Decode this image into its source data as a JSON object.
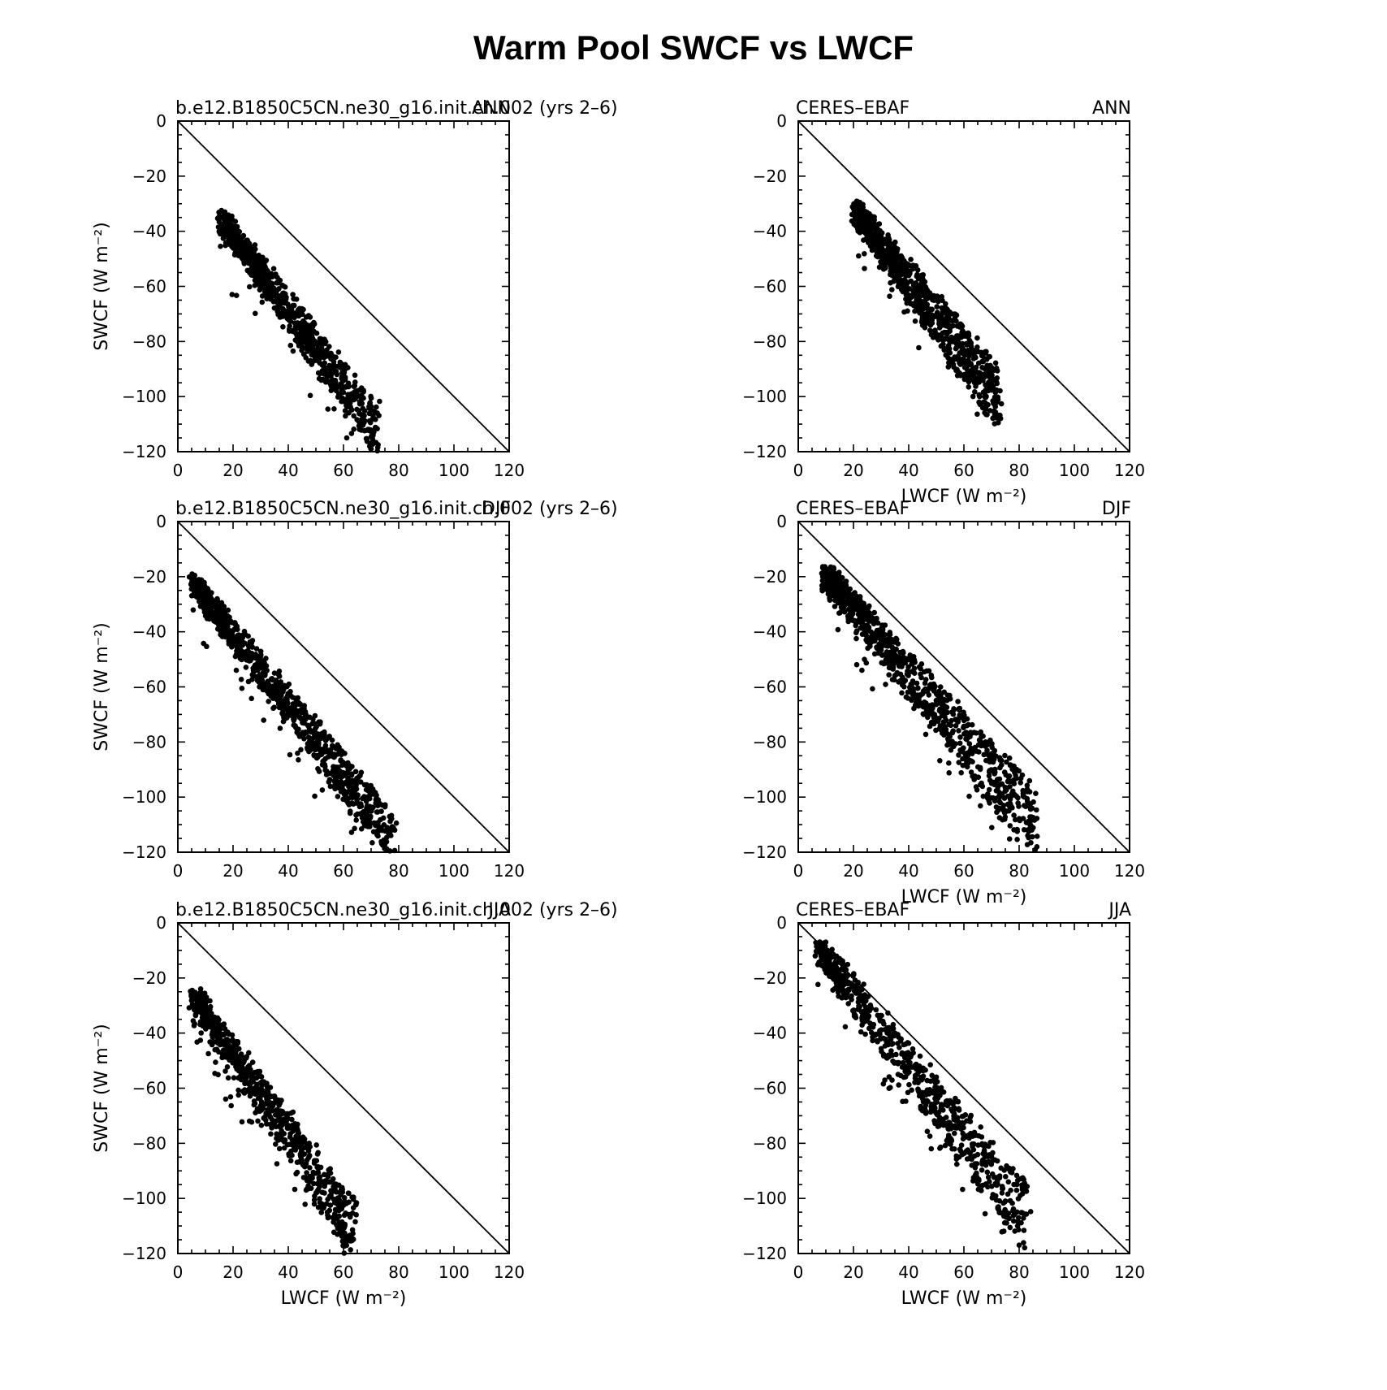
{
  "figure": {
    "title": "Warm Pool SWCF vs LWCF"
  },
  "chart_data": [
    {
      "type": "scatter",
      "left_title": "b.e12.B1850C5CN.ne30_g16.init.ch.002 (yrs 2–6)",
      "right_title": "ANN",
      "ylabel": "SWCF (W m⁻²)",
      "xlabel": "",
      "xlim": [
        0,
        120
      ],
      "ylim": [
        -120,
        0
      ],
      "xticks": [
        "0",
        "20",
        "40",
        "60",
        "80",
        "100",
        "120"
      ],
      "yticks": [
        "0",
        "−20",
        "−40",
        "−60",
        "−80",
        "−100",
        "−120"
      ],
      "reference_line": "one-to-one",
      "cloud": {
        "n": 900,
        "x": [
          16,
          72
        ],
        "y0": -36,
        "y1": -112,
        "mid_x": [
          28,
          50
        ],
        "mid_y": [
          -45,
          -80
        ],
        "spread": 6,
        "outliers": 40
      }
    },
    {
      "type": "scatter",
      "left_title": "CERES–EBAF",
      "right_title": "ANN",
      "ylabel": "",
      "xlabel": "LWCF (W m⁻²)",
      "xlim": [
        0,
        120
      ],
      "ylim": [
        -120,
        0
      ],
      "xticks": [
        "0",
        "20",
        "40",
        "60",
        "80",
        "100",
        "120"
      ],
      "yticks": [
        "0",
        "−20",
        "−40",
        "−60",
        "−80",
        "−100",
        "−120"
      ],
      "reference_line": "one-to-one",
      "cloud": {
        "n": 900,
        "x": [
          21,
          72
        ],
        "y0": -33,
        "y1": -100,
        "mid_x": [
          30,
          55
        ],
        "mid_y": [
          -40,
          -70
        ],
        "spread": 7,
        "outliers": 40
      }
    },
    {
      "type": "scatter",
      "left_title": "b.e12.B1850C5CN.ne30_g16.init.ch.002 (yrs 2–6)",
      "right_title": "DJF",
      "ylabel": "SWCF (W m⁻²)",
      "xlabel": "",
      "xlim": [
        0,
        120
      ],
      "ylim": [
        -120,
        0
      ],
      "xticks": [
        "0",
        "20",
        "40",
        "60",
        "80",
        "100",
        "120"
      ],
      "yticks": [
        "0",
        "−20",
        "−40",
        "−60",
        "−80",
        "−100",
        "−120"
      ],
      "reference_line": "one-to-one",
      "cloud": {
        "n": 900,
        "x": [
          6,
          78
        ],
        "y0": -23,
        "y1": -116,
        "mid_x": [
          20,
          55
        ],
        "mid_y": [
          -40,
          -82
        ],
        "spread": 6,
        "outliers": 60
      }
    },
    {
      "type": "scatter",
      "left_title": "CERES–EBAF",
      "right_title": "DJF",
      "ylabel": "",
      "xlabel": "LWCF (W m⁻²)",
      "xlim": [
        0,
        120
      ],
      "ylim": [
        -120,
        0
      ],
      "xticks": [
        "0",
        "20",
        "40",
        "60",
        "80",
        "100",
        "120"
      ],
      "yticks": [
        "0",
        "−20",
        "−40",
        "−60",
        "−80",
        "−100",
        "−120"
      ],
      "reference_line": "one-to-one",
      "cloud": {
        "n": 900,
        "x": [
          10,
          86
        ],
        "y0": -20,
        "y1": -110,
        "mid_x": [
          25,
          65
        ],
        "mid_y": [
          -35,
          -80
        ],
        "spread": 8,
        "outliers": 50
      }
    },
    {
      "type": "scatter",
      "left_title": "b.e12.B1850C5CN.ne30_g16.init.ch.002 (yrs 2–6)",
      "right_title": "JJA",
      "ylabel": "SWCF (W m⁻²)",
      "xlabel": "LWCF (W m⁻²)",
      "xlim": [
        0,
        120
      ],
      "ylim": [
        -120,
        0
      ],
      "xticks": [
        "0",
        "20",
        "40",
        "60",
        "80",
        "100",
        "120"
      ],
      "yticks": [
        "0",
        "−20",
        "−40",
        "−60",
        "−80",
        "−100",
        "−120"
      ],
      "reference_line": "one-to-one",
      "cloud": {
        "n": 700,
        "x": [
          6,
          64
        ],
        "y0": -27,
        "y1": -112,
        "mid_x": [
          25,
          50
        ],
        "mid_y": [
          -45,
          -72
        ],
        "spread": 7,
        "outliers": 80
      }
    },
    {
      "type": "scatter",
      "left_title": "CERES–EBAF",
      "right_title": "JJA",
      "ylabel": "",
      "xlabel": "LWCF (W m⁻²)",
      "xlim": [
        0,
        120
      ],
      "ylim": [
        -120,
        0
      ],
      "xticks": [
        "0",
        "20",
        "40",
        "60",
        "80",
        "100",
        "120"
      ],
      "yticks": [
        "0",
        "−20",
        "−40",
        "−60",
        "−80",
        "−100",
        "−120"
      ],
      "reference_line": "one-to-one",
      "cloud": {
        "n": 700,
        "x": [
          8,
          83
        ],
        "y0": -10,
        "y1": -108,
        "mid_x": [
          30,
          60
        ],
        "mid_y": [
          -45,
          -78
        ],
        "spread": 8,
        "outliers": 50
      }
    }
  ]
}
